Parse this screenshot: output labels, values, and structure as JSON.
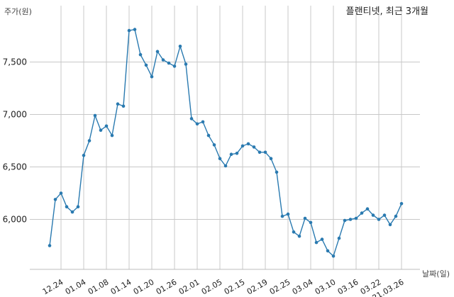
{
  "chart_data": {
    "type": "line",
    "title": "플랜티넷, 최근 3개월",
    "ylabel": "주가(원)",
    "xlabel": "날짜(일)",
    "ylim": [
      5500,
      7900
    ],
    "yticks": [
      {
        "value": 6000,
        "label": "6,000"
      },
      {
        "value": 6500,
        "label": "6,500"
      },
      {
        "value": 7000,
        "label": "7,000"
      },
      {
        "value": 7500,
        "label": "7,500"
      }
    ],
    "xticks": [
      {
        "index": 2,
        "label": "12.24"
      },
      {
        "index": 6,
        "label": "01.04"
      },
      {
        "index": 10,
        "label": "01.08"
      },
      {
        "index": 14,
        "label": "01.14"
      },
      {
        "index": 18,
        "label": "01.20"
      },
      {
        "index": 22,
        "label": "01.26"
      },
      {
        "index": 26,
        "label": "02.01"
      },
      {
        "index": 30,
        "label": "02.05"
      },
      {
        "index": 34,
        "label": "02.15"
      },
      {
        "index": 38,
        "label": "02.19"
      },
      {
        "index": 42,
        "label": "02.25"
      },
      {
        "index": 46,
        "label": "03.04"
      },
      {
        "index": 50,
        "label": "03.10"
      },
      {
        "index": 54,
        "label": "03.16"
      },
      {
        "index": 58,
        "label": "03.22"
      },
      {
        "index": 62,
        "label": "21.03.26"
      }
    ],
    "grid": true,
    "color": "#2a7ab0",
    "values": [
      5750,
      6190,
      6250,
      6120,
      6070,
      6120,
      6610,
      6750,
      6990,
      6850,
      6890,
      6800,
      7100,
      7080,
      7800,
      7810,
      7570,
      7470,
      7360,
      7600,
      7520,
      7490,
      7460,
      7650,
      7480,
      6960,
      6910,
      6930,
      6800,
      6710,
      6580,
      6510,
      6620,
      6630,
      6700,
      6720,
      6690,
      6640,
      6640,
      6580,
      6450,
      6030,
      6050,
      5880,
      5840,
      6010,
      5970,
      5780,
      5810,
      5700,
      5650,
      5820,
      5990,
      6000,
      6010,
      6060,
      6100,
      6040,
      6000,
      6040,
      5950,
      6030,
      6150
    ]
  }
}
